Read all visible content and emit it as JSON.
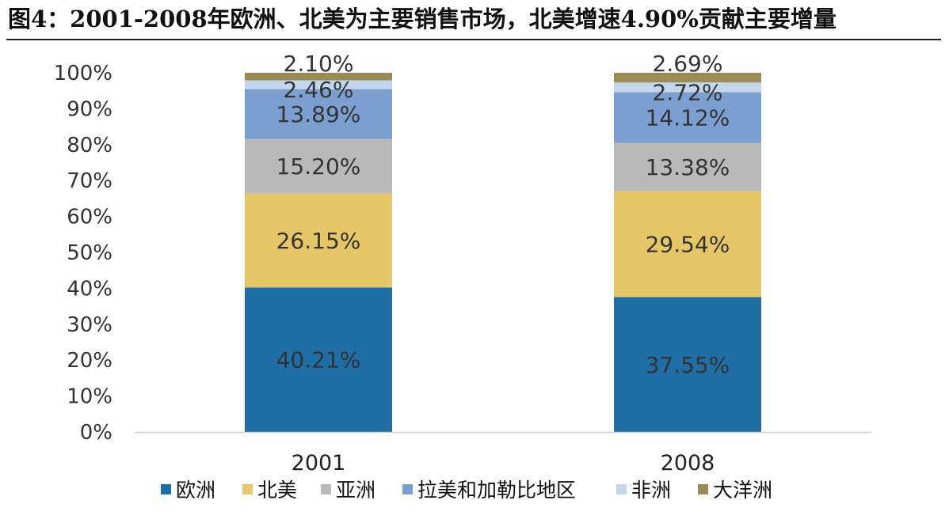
{
  "title": "图4：2001-2008年欧洲、北美为主要销售市场，北美增速4.90%贡献主要增量",
  "chart_data": {
    "type": "bar",
    "stacked": true,
    "percent_stacked": true,
    "categories": [
      "2001",
      "2008"
    ],
    "y_ticks": [
      "0%",
      "10%",
      "20%",
      "30%",
      "40%",
      "50%",
      "60%",
      "70%",
      "80%",
      "90%",
      "100%"
    ],
    "ylim": [
      0,
      100
    ],
    "grid": false,
    "legend_position": "bottom",
    "series": [
      {
        "name": "欧洲",
        "color": "#1f6ea5",
        "values": [
          40.21,
          37.55
        ],
        "labels": [
          "40.21%",
          "37.55%"
        ]
      },
      {
        "name": "北美",
        "color": "#e6c767",
        "values": [
          26.15,
          29.54
        ],
        "labels": [
          "26.15%",
          "29.54%"
        ]
      },
      {
        "name": "亚洲",
        "color": "#b9b9b9",
        "values": [
          15.2,
          13.38
        ],
        "labels": [
          "15.20%",
          "13.38%"
        ]
      },
      {
        "name": "拉美和加勒比地区",
        "color": "#7b9fd0",
        "values": [
          13.89,
          14.12
        ],
        "labels": [
          "13.89%",
          "14.12%"
        ]
      },
      {
        "name": "非洲",
        "color": "#c3d6ec",
        "values": [
          2.46,
          2.72
        ],
        "labels": [
          "2.46%",
          "2.72%"
        ]
      },
      {
        "name": "大洋洲",
        "color": "#9a8a55",
        "values": [
          2.1,
          2.69
        ],
        "labels": [
          "2.10%",
          "2.69%"
        ]
      }
    ]
  }
}
